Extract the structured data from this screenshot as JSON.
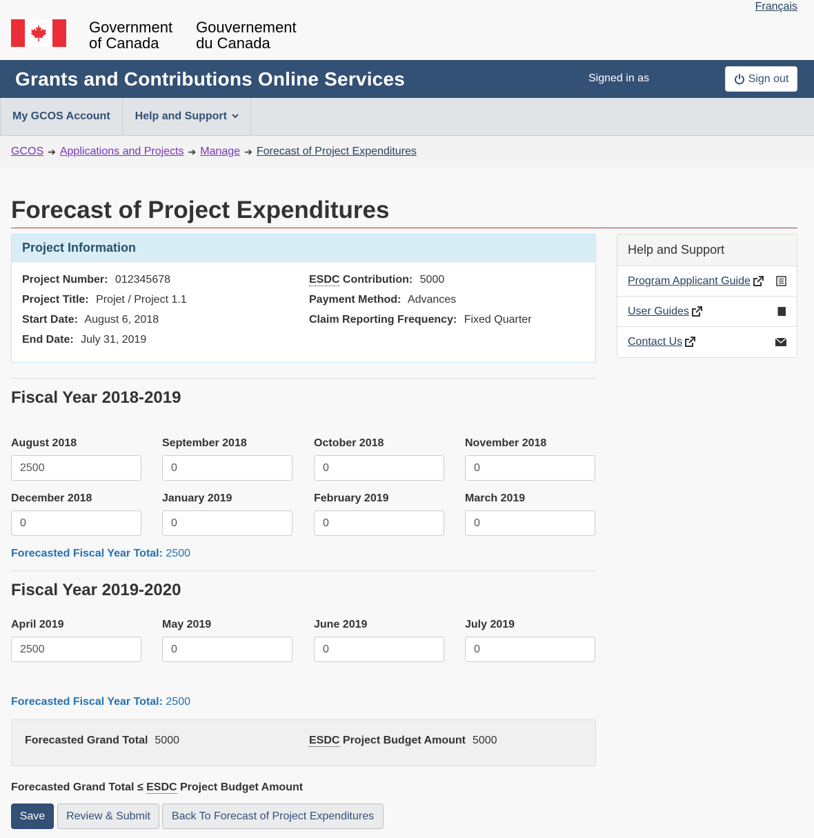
{
  "header": {
    "lang_link": "Français",
    "gov_en_line1": "Government",
    "gov_en_line2": "of Canada",
    "gov_fr_line1": "Gouvernement",
    "gov_fr_line2": "du Canada",
    "flag_colors": {
      "red": "#eb2d37",
      "white": "#ffffff"
    }
  },
  "appbar": {
    "title": "Grants and Contributions Online Services",
    "signed_in": "Signed in as",
    "signout": "Sign out",
    "background": "#335075"
  },
  "menu": {
    "items": [
      {
        "label": "My GCOS Account"
      },
      {
        "label": "Help and Support"
      }
    ]
  },
  "breadcrumb": {
    "items": [
      "GCOS",
      "Applications and Projects",
      "Manage",
      "Forecast of Project Expenditures"
    ]
  },
  "page": {
    "title": "Forecast of Project Expenditures"
  },
  "project_info": {
    "heading": "Project Information",
    "project_number_label": "Project Number:",
    "project_number": "012345678",
    "project_title_label": "Project Title:",
    "project_title": "Projet / Project 1.1",
    "start_date_label": "Start Date:",
    "start_date": "August 6, 2018",
    "end_date_label": "End Date:",
    "end_date": "July 31, 2019",
    "esdc_abbr": "ESDC",
    "contribution_label": "Contribution:",
    "contribution": "5000",
    "payment_method_label": "Payment Method:",
    "payment_method": "Advances",
    "claim_freq_label": "Claim Reporting Frequency:",
    "claim_freq": "Fixed Quarter"
  },
  "sidebar": {
    "heading": "Help and Support",
    "links": [
      {
        "label": "Program Applicant Guide",
        "icon": "list-alt-icon"
      },
      {
        "label": "User Guides",
        "icon": "book-icon"
      },
      {
        "label": "Contact Us",
        "icon": "envelope-icon"
      }
    ]
  },
  "fiscal_years": [
    {
      "title": "Fiscal Year 2018-2019",
      "months": [
        {
          "label": "August 2018",
          "value": "2500"
        },
        {
          "label": "September 2018",
          "value": "0"
        },
        {
          "label": "October 2018",
          "value": "0"
        },
        {
          "label": "November 2018",
          "value": "0"
        },
        {
          "label": "December 2018",
          "value": "0"
        },
        {
          "label": "January 2019",
          "value": "0"
        },
        {
          "label": "February 2019",
          "value": "0"
        },
        {
          "label": "March 2019",
          "value": "0"
        }
      ],
      "total_label": "Forecasted Fiscal Year Total:",
      "total": "2500"
    },
    {
      "title": "Fiscal Year 2019-2020",
      "months": [
        {
          "label": "April 2019",
          "value": "2500"
        },
        {
          "label": "May 2019",
          "value": "0"
        },
        {
          "label": "June 2019",
          "value": "0"
        },
        {
          "label": "July 2019",
          "value": "0"
        }
      ],
      "total_label": "Forecasted Fiscal Year Total:",
      "total": "2500"
    }
  ],
  "summary": {
    "grand_total_label": "Forecasted Grand Total",
    "grand_total": "5000",
    "esdc_abbr": "ESDC",
    "budget_label": "Project Budget Amount",
    "budget": "5000",
    "constraint_prefix": "Forecasted Grand Total ≤",
    "constraint_abbr": "ESDC",
    "constraint_suffix": "Project Budget Amount"
  },
  "buttons": {
    "save": "Save",
    "review": "Review & Submit",
    "back": "Back To Forecast of Project Expenditures"
  }
}
